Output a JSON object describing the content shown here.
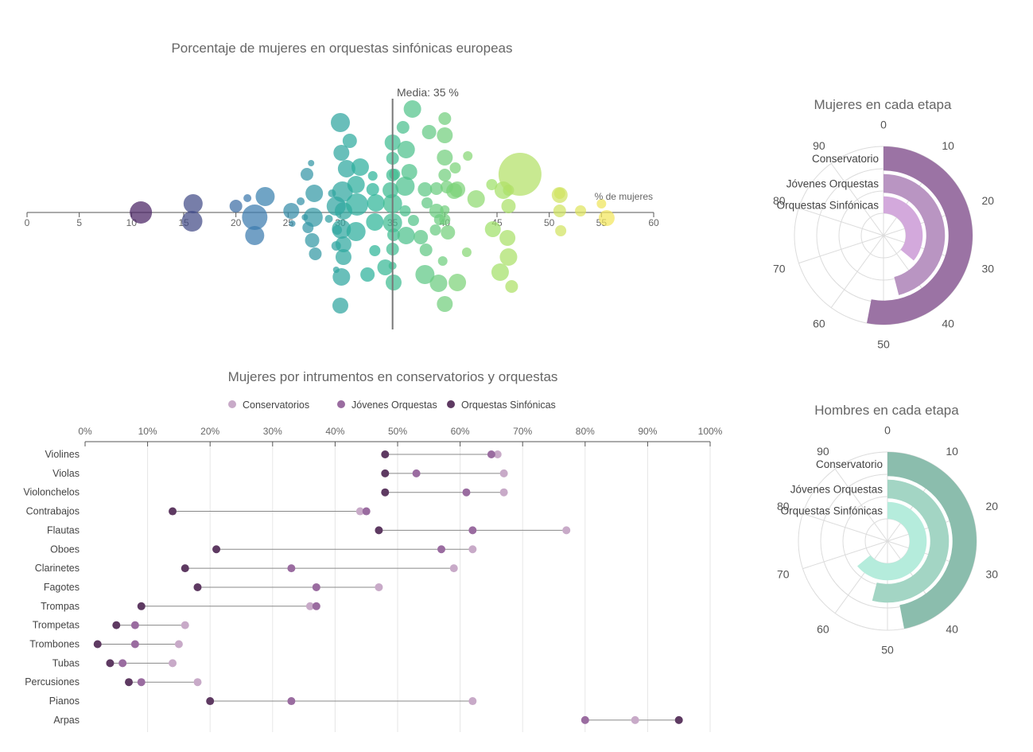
{
  "chart_data": [
    {
      "type": "scatter",
      "title": "Porcentaje de mujeres en orquestas sinfónicas europeas",
      "xlabel": "% de mujeres",
      "xlim": [
        0,
        60
      ],
      "xticks": [
        0,
        5,
        10,
        15,
        20,
        25,
        30,
        35,
        40,
        45,
        50,
        55,
        60
      ],
      "mean_value": 35,
      "mean_label": "Media: 35 %",
      "color_scale": [
        "#4b1a5e",
        "#3b7bb0",
        "#2bb49a",
        "#9ee06a",
        "#f6e65a"
      ],
      "points": [
        {
          "x": 10.9,
          "y": 0,
          "r": 14
        },
        {
          "x": 15.8,
          "y": 11,
          "r": 13
        },
        {
          "x": 15.9,
          "y": -11,
          "r": 12
        },
        {
          "x": 20,
          "y": -8,
          "r": 8
        },
        {
          "x": 21.1,
          "y": -18,
          "r": 5
        },
        {
          "x": 21.8,
          "y": 29,
          "r": 12
        },
        {
          "x": 21.8,
          "y": 6,
          "r": 16
        },
        {
          "x": 22.8,
          "y": -20,
          "r": 12
        },
        {
          "x": 25.3,
          "y": -2,
          "r": 10
        },
        {
          "x": 25.4,
          "y": 14,
          "r": 4
        },
        {
          "x": 26.2,
          "y": -14,
          "r": 5
        },
        {
          "x": 26.6,
          "y": 6,
          "r": 4
        },
        {
          "x": 26.9,
          "y": 19,
          "r": 7
        },
        {
          "x": 26.8,
          "y": -48,
          "r": 8
        },
        {
          "x": 27.2,
          "y": -62,
          "r": 4
        },
        {
          "x": 27.5,
          "y": -24,
          "r": 11
        },
        {
          "x": 27.4,
          "y": 6,
          "r": 12
        },
        {
          "x": 27.3,
          "y": 35,
          "r": 9
        },
        {
          "x": 27.6,
          "y": 52,
          "r": 8
        },
        {
          "x": 29.2,
          "y": -24,
          "r": 5
        },
        {
          "x": 28.9,
          "y": 8,
          "r": 5
        },
        {
          "x": 29.6,
          "y": 42,
          "r": 6
        },
        {
          "x": 29.6,
          "y": -8,
          "r": 12
        },
        {
          "x": 29.6,
          "y": 72,
          "r": 4
        },
        {
          "x": 29.7,
          "y": 22,
          "r": 6
        },
        {
          "x": 30.3,
          "y": -2,
          "r": 11
        },
        {
          "x": 30.1,
          "y": 21,
          "r": 12
        },
        {
          "x": 30.2,
          "y": -26,
          "r": 13
        },
        {
          "x": 30.3,
          "y": 56,
          "r": 10
        },
        {
          "x": 30.3,
          "y": 40,
          "r": 10
        },
        {
          "x": 30.6,
          "y": -55,
          "r": 11
        },
        {
          "x": 30.1,
          "y": 81,
          "r": 11
        },
        {
          "x": 30.1,
          "y": -75,
          "r": 10
        },
        {
          "x": 30,
          "y": -113,
          "r": 12
        },
        {
          "x": 30,
          "y": 117,
          "r": 10
        },
        {
          "x": 30.9,
          "y": -90,
          "r": 9
        },
        {
          "x": 31.5,
          "y": -35,
          "r": 11
        },
        {
          "x": 31.5,
          "y": 24,
          "r": 12
        },
        {
          "x": 31.6,
          "y": -10,
          "r": 14
        },
        {
          "x": 31.9,
          "y": -57,
          "r": 11
        },
        {
          "x": 32.6,
          "y": 78,
          "r": 9
        },
        {
          "x": 33.4,
          "y": -12,
          "r": 11
        },
        {
          "x": 33.3,
          "y": 12,
          "r": 11
        },
        {
          "x": 33.1,
          "y": -29,
          "r": 8
        },
        {
          "x": 33.3,
          "y": 48,
          "r": 7
        },
        {
          "x": 33.1,
          "y": -46,
          "r": 6
        },
        {
          "x": 34.3,
          "y": 69,
          "r": 10
        },
        {
          "x": 35,
          "y": -47,
          "r": 8
        },
        {
          "x": 35,
          "y": -88,
          "r": 10
        },
        {
          "x": 35,
          "y": -68,
          "r": 8
        },
        {
          "x": 35,
          "y": 13,
          "r": 12
        },
        {
          "x": 35,
          "y": -11,
          "r": 12
        },
        {
          "x": 34.8,
          "y": -28,
          "r": 10
        },
        {
          "x": 35.1,
          "y": 88,
          "r": 10
        },
        {
          "x": 35,
          "y": 67,
          "r": 5
        },
        {
          "x": 35,
          "y": 46,
          "r": 8
        },
        {
          "x": 35.1,
          "y": 28,
          "r": 8
        },
        {
          "x": 35.2,
          "y": -48,
          "r": 7
        },
        {
          "x": 36,
          "y": -107,
          "r": 8
        },
        {
          "x": 36.3,
          "y": -79,
          "r": 11
        },
        {
          "x": 36.2,
          "y": -33,
          "r": 12
        },
        {
          "x": 36.2,
          "y": -2,
          "r": 7
        },
        {
          "x": 36.3,
          "y": 29,
          "r": 11
        },
        {
          "x": 36.9,
          "y": -130,
          "r": 11
        },
        {
          "x": 36.6,
          "y": -51,
          "r": 10
        },
        {
          "x": 37,
          "y": 10,
          "r": 7
        },
        {
          "x": 37.7,
          "y": 31,
          "r": 9
        },
        {
          "x": 38.1,
          "y": -29,
          "r": 9
        },
        {
          "x": 38.1,
          "y": 78,
          "r": 12
        },
        {
          "x": 38.2,
          "y": 47,
          "r": 8
        },
        {
          "x": 38.3,
          "y": -12,
          "r": 7
        },
        {
          "x": 38.5,
          "y": -101,
          "r": 9
        },
        {
          "x": 39.1,
          "y": 22,
          "r": 7
        },
        {
          "x": 39.2,
          "y": -30,
          "r": 8
        },
        {
          "x": 39.2,
          "y": -2,
          "r": 9
        },
        {
          "x": 39.4,
          "y": 89,
          "r": 11
        },
        {
          "x": 39.5,
          "y": 9,
          "r": 7
        },
        {
          "x": 39.8,
          "y": 61,
          "r": 6
        },
        {
          "x": 40,
          "y": -118,
          "r": 8
        },
        {
          "x": 40,
          "y": -69,
          "r": 10
        },
        {
          "x": 40,
          "y": -47,
          "r": 8
        },
        {
          "x": 40,
          "y": -97,
          "r": 10
        },
        {
          "x": 40.2,
          "y": -32,
          "r": 8
        },
        {
          "x": 40.3,
          "y": 25,
          "r": 9
        },
        {
          "x": 40,
          "y": -3,
          "r": 6
        },
        {
          "x": 40,
          "y": 115,
          "r": 10
        },
        {
          "x": 40,
          "y": 9,
          "r": 7
        },
        {
          "x": 40.9,
          "y": -27,
          "r": 10
        },
        {
          "x": 41,
          "y": -56,
          "r": 7
        },
        {
          "x": 41.2,
          "y": 88,
          "r": 11
        },
        {
          "x": 41.2,
          "y": -29,
          "r": 10
        },
        {
          "x": 42.2,
          "y": -71,
          "r": 6
        },
        {
          "x": 42.1,
          "y": 50,
          "r": 6
        },
        {
          "x": 43,
          "y": -17,
          "r": 11
        },
        {
          "x": 44.5,
          "y": -35,
          "r": 7
        },
        {
          "x": 44.6,
          "y": 21,
          "r": 10
        },
        {
          "x": 45.6,
          "y": -28,
          "r": 11
        },
        {
          "x": 45.3,
          "y": 75,
          "r": 11
        },
        {
          "x": 46.1,
          "y": -8,
          "r": 9
        },
        {
          "x": 46.1,
          "y": -28,
          "r": 7
        },
        {
          "x": 47.2,
          "y": -48,
          "r": 27
        },
        {
          "x": 46.4,
          "y": 93,
          "r": 8
        },
        {
          "x": 46.1,
          "y": 56,
          "r": 11
        },
        {
          "x": 46,
          "y": 32,
          "r": 10
        },
        {
          "x": 51,
          "y": -22,
          "r": 10
        },
        {
          "x": 51,
          "y": -2,
          "r": 8
        },
        {
          "x": 51,
          "y": -24,
          "r": 7
        },
        {
          "x": 51.1,
          "y": 23,
          "r": 7
        },
        {
          "x": 53,
          "y": -2,
          "r": 7
        },
        {
          "x": 55,
          "y": -11,
          "r": 6
        },
        {
          "x": 55.5,
          "y": 7,
          "r": 10
        }
      ]
    },
    {
      "type": "dot-plot",
      "title": "Mujeres por intrumentos en conservatorios y orquestas",
      "xlim": [
        0,
        100
      ],
      "xticks": [
        "0%",
        "10%",
        "20%",
        "30%",
        "40%",
        "50%",
        "60%",
        "70%",
        "80%",
        "90%",
        "100%"
      ],
      "grid": true,
      "legend_position": "top",
      "colors": {
        "Conservatorios": "#c8aac8",
        "Jóvenes Orquestas": "#9a6ca0",
        "Orquestas Sinfónicas": "#5e3a62"
      },
      "categories": [
        "Violines",
        "Violas",
        "Violonchelos",
        "Contrabajos",
        "Flautas",
        "Oboes",
        "Clarinetes",
        "Fagotes",
        "Trompas",
        "Trompetas",
        "Trombones",
        "Tubas",
        "Percusiones",
        "Pianos",
        "Arpas"
      ],
      "series": [
        {
          "name": "Conservatorios",
          "values": [
            66,
            67,
            67,
            44,
            77,
            62,
            59,
            47,
            36,
            16,
            15,
            14,
            18,
            62,
            88
          ]
        },
        {
          "name": "Jóvenes Orquestas",
          "values": [
            65,
            53,
            61,
            45,
            62,
            57,
            33,
            37,
            37,
            8,
            8,
            6,
            9,
            33,
            80
          ]
        },
        {
          "name": "Orquestas Sinfónicas",
          "values": [
            48,
            48,
            48,
            14,
            47,
            21,
            16,
            18,
            9,
            5,
            2,
            4,
            7,
            20,
            95
          ]
        }
      ]
    },
    {
      "type": "radial-bar",
      "title": "Mujeres en cada etapa",
      "angle_range": [
        0,
        100
      ],
      "angle_ticks": [
        0,
        10,
        20,
        30,
        40,
        50,
        60,
        70,
        80,
        90
      ],
      "rings": [
        {
          "label": "Conservatorio",
          "value": 53,
          "color": "#9b73a4"
        },
        {
          "label": "Jóvenes Orquestas",
          "value": 46,
          "color": "#b995c2"
        },
        {
          "label": "Orquestas Sinfónicas",
          "value": 36,
          "color": "#d3a9dc"
        }
      ]
    },
    {
      "type": "radial-bar",
      "title": "Hombres en cada etapa",
      "angle_range": [
        0,
        100
      ],
      "angle_ticks": [
        0,
        10,
        20,
        30,
        40,
        50,
        60,
        70,
        80,
        90
      ],
      "rings": [
        {
          "label": "Conservatorio",
          "value": 47,
          "color": "#8bbdad"
        },
        {
          "label": "Jóvenes Orquestas",
          "value": 54,
          "color": "#a3d5c4"
        },
        {
          "label": "Orquestas Sinfónicas",
          "value": 64,
          "color": "#b5ecdc"
        }
      ]
    }
  ]
}
